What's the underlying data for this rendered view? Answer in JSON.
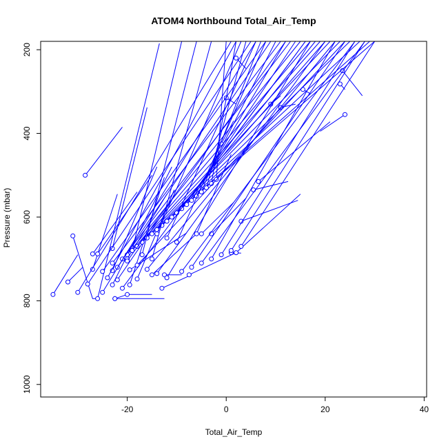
{
  "chart_data": {
    "type": "line",
    "title": "ATOM4 Northbound Total_Air_Temp",
    "xlabel": "Total_Air_Temp",
    "ylabel": "Pressure (mbar)",
    "xlim": [
      -37.5,
      40.5
    ],
    "ylim": [
      1030,
      180
    ],
    "y_reversed": true,
    "x_ticks": [
      -20,
      0,
      20,
      40
    ],
    "y_ticks": [
      200,
      400,
      600,
      800,
      1000
    ],
    "grid": false,
    "legend": "none",
    "line_color": "#0000ff",
    "marker": "open-circle",
    "series": [
      {
        "x": [
          -35,
          -30
        ],
        "y": [
          785,
          690
        ]
      },
      {
        "x": [
          -28.5,
          -21
        ],
        "y": [
          500,
          385
        ]
      },
      {
        "x": [
          -32,
          -29
        ],
        "y": [
          755,
          720
        ]
      },
      {
        "x": [
          -31,
          -27,
          -26
        ],
        "y": [
          645,
          795,
          795
        ]
      },
      {
        "x": [
          -27,
          -22
        ],
        "y": [
          725,
          545
        ]
      },
      {
        "x": [
          -26,
          -13.5
        ],
        "y": [
          795,
          185
        ]
      },
      {
        "x": [
          -27,
          -18
        ],
        "y": [
          688,
          540
        ]
      },
      {
        "x": [
          -23,
          -16
        ],
        "y": [
          675,
          338
        ]
      },
      {
        "x": [
          -26,
          -15
        ],
        "y": [
          688,
          500
        ]
      },
      {
        "x": [
          -22.5,
          -20
        ],
        "y": [
          795,
          785
        ]
      },
      {
        "x": [
          -22.5,
          -12.5
        ],
        "y": [
          795,
          795
        ]
      },
      {
        "x": [
          -20,
          -15
        ],
        "y": [
          785,
          785
        ]
      },
      {
        "x": [
          -23,
          -14
        ],
        "y": [
          728,
          480
        ]
      },
      {
        "x": [
          -23,
          -11
        ],
        "y": [
          762,
          480
        ]
      },
      {
        "x": [
          -22,
          -11
        ],
        "y": [
          750,
          560
        ]
      },
      {
        "x": [
          -18,
          -10.5
        ],
        "y": [
          748,
          535
        ]
      },
      {
        "x": [
          -19.5,
          -12.5
        ],
        "y": [
          762,
          505
        ]
      },
      {
        "x": [
          -19.5,
          -8
        ],
        "y": [
          726,
          638
        ]
      },
      {
        "x": [
          -20,
          -12
        ],
        "y": [
          700,
          545
        ]
      },
      {
        "x": [
          -15,
          -6
        ],
        "y": [
          738,
          640
        ]
      },
      {
        "x": [
          -13,
          -7
        ],
        "y": [
          770,
          738
        ]
      },
      {
        "x": [
          -12.5,
          -9
        ],
        "y": [
          738,
          738
        ]
      },
      {
        "x": [
          -7.5,
          2
        ],
        "y": [
          738,
          685
        ]
      },
      {
        "x": [
          -5,
          1.5
        ],
        "y": [
          640,
          565
        ]
      },
      {
        "x": [
          -3,
          4
        ],
        "y": [
          640,
          555
        ]
      },
      {
        "x": [
          1,
          3
        ],
        "y": [
          685,
          686
        ]
      },
      {
        "x": [
          2,
          15
        ],
        "y": [
          685,
          545
        ]
      },
      {
        "x": [
          3,
          14.5
        ],
        "y": [
          610,
          560
        ]
      },
      {
        "x": [
          5.5,
          12.5
        ],
        "y": [
          535,
          515
        ]
      },
      {
        "x": [
          6.5,
          21
        ],
        "y": [
          515,
          372
        ]
      },
      {
        "x": [
          -6,
          1
        ],
        "y": [
          640,
          450
        ]
      },
      {
        "x": [
          -1,
          1.5
        ],
        "y": [
          425,
          370
        ]
      },
      {
        "x": [
          0,
          2
        ],
        "y": [
          315,
          330
        ]
      },
      {
        "x": [
          2,
          4
        ],
        "y": [
          220,
          245
        ]
      },
      {
        "x": [
          9,
          11
        ],
        "y": [
          330,
          310
        ]
      },
      {
        "x": [
          11,
          14
        ],
        "y": [
          338,
          330
        ]
      },
      {
        "x": [
          15.5,
          17
        ],
        "y": [
          295,
          305
        ]
      },
      {
        "x": [
          23,
          24
        ],
        "y": [
          282,
          295
        ]
      },
      {
        "x": [
          23.5,
          27.5
        ],
        "y": [
          250,
          310
        ]
      },
      {
        "x": [
          24,
          19
        ],
        "y": [
          355,
          395
        ]
      },
      {
        "x": [
          -30,
          1
        ],
        "y": [
          780,
          180
        ]
      },
      {
        "x": [
          -28,
          5
        ],
        "y": [
          760,
          180
        ]
      },
      {
        "x": [
          -25,
          8
        ],
        "y": [
          730,
          180
        ]
      },
      {
        "x": [
          -23,
          11
        ],
        "y": [
          710,
          180
        ]
      },
      {
        "x": [
          -21,
          13
        ],
        "y": [
          700,
          180
        ]
      },
      {
        "x": [
          -20,
          15
        ],
        "y": [
          690,
          180
        ]
      },
      {
        "x": [
          -19,
          17
        ],
        "y": [
          680,
          180
        ]
      },
      {
        "x": [
          -18,
          19
        ],
        "y": [
          670,
          180
        ]
      },
      {
        "x": [
          -17,
          21
        ],
        "y": [
          660,
          180
        ]
      },
      {
        "x": [
          -16,
          23
        ],
        "y": [
          650,
          180
        ]
      },
      {
        "x": [
          -15,
          25
        ],
        "y": [
          640,
          180
        ]
      },
      {
        "x": [
          -14,
          27
        ],
        "y": [
          630,
          180
        ]
      },
      {
        "x": [
          -13,
          29
        ],
        "y": [
          620,
          180
        ]
      },
      {
        "x": [
          -12,
          30
        ],
        "y": [
          610,
          180
        ]
      },
      {
        "x": [
          -11,
          20
        ],
        "y": [
          600,
          180
        ]
      },
      {
        "x": [
          -10,
          18
        ],
        "y": [
          590,
          180
        ]
      },
      {
        "x": [
          -9,
          16
        ],
        "y": [
          580,
          180
        ]
      },
      {
        "x": [
          -8,
          14
        ],
        "y": [
          570,
          180
        ]
      },
      {
        "x": [
          -7,
          12
        ],
        "y": [
          560,
          180
        ]
      },
      {
        "x": [
          -6,
          10
        ],
        "y": [
          550,
          180
        ]
      },
      {
        "x": [
          -5,
          7
        ],
        "y": [
          540,
          180
        ]
      },
      {
        "x": [
          -4,
          4
        ],
        "y": [
          530,
          180
        ]
      },
      {
        "x": [
          -3,
          2
        ],
        "y": [
          520,
          180
        ]
      },
      {
        "x": [
          -2,
          0
        ],
        "y": [
          510,
          180
        ]
      },
      {
        "x": [
          -15,
          -3
        ],
        "y": [
          700,
          180
        ]
      },
      {
        "x": [
          -17,
          -6
        ],
        "y": [
          690,
          180
        ]
      },
      {
        "x": [
          -19,
          -9
        ],
        "y": [
          680,
          180
        ]
      },
      {
        "x": [
          -9,
          26
        ],
        "y": [
          730,
          180
        ]
      },
      {
        "x": [
          -7,
          24
        ],
        "y": [
          720,
          180
        ]
      },
      {
        "x": [
          -5,
          28
        ],
        "y": [
          710,
          180
        ]
      },
      {
        "x": [
          -3,
          22
        ],
        "y": [
          700,
          180
        ]
      },
      {
        "x": [
          -1,
          26
        ],
        "y": [
          690,
          180
        ]
      },
      {
        "x": [
          1,
          28
        ],
        "y": [
          680,
          180
        ]
      },
      {
        "x": [
          3,
          30
        ],
        "y": [
          670,
          180
        ]
      },
      {
        "x": [
          -10,
          8
        ],
        "y": [
          660,
          180
        ]
      },
      {
        "x": [
          -12,
          6
        ],
        "y": [
          650,
          180
        ]
      },
      {
        "x": [
          -14,
          3
        ],
        "y": [
          640,
          180
        ]
      },
      {
        "x": [
          -24,
          2
        ],
        "y": [
          745,
          180
        ]
      },
      {
        "x": [
          -22,
          9
        ],
        "y": [
          720,
          180
        ]
      },
      {
        "x": [
          -20,
          12
        ],
        "y": [
          705,
          180
        ]
      },
      {
        "x": [
          -18,
          24
        ],
        "y": [
          715,
          180
        ]
      },
      {
        "x": [
          -16,
          22
        ],
        "y": [
          725,
          180
        ]
      },
      {
        "x": [
          -14,
          20
        ],
        "y": [
          735,
          180
        ]
      },
      {
        "x": [
          -12,
          17
        ],
        "y": [
          745,
          180
        ]
      },
      {
        "x": [
          -25,
          6
        ],
        "y": [
          780,
          180
        ]
      },
      {
        "x": [
          -21,
          16
        ],
        "y": [
          770,
          180
        ]
      }
    ]
  }
}
